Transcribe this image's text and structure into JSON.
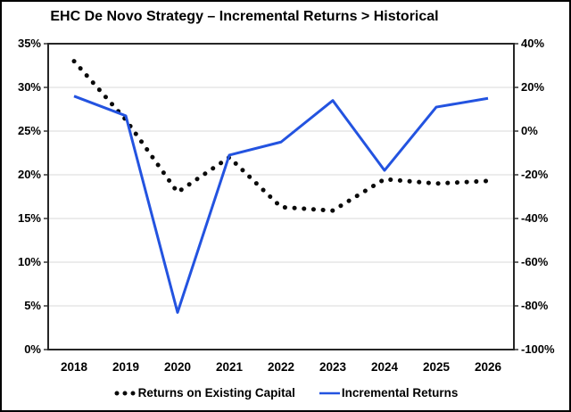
{
  "title": "EHC De Novo Strategy – Incremental Returns > Historical",
  "chart_data": {
    "type": "line",
    "title": "EHC De Novo Strategy – Incremental Returns > Historical",
    "categories": [
      "2018",
      "2019",
      "2020",
      "2021",
      "2022",
      "2023",
      "2024",
      "2025",
      "2026"
    ],
    "series": [
      {
        "name": "Returns on Existing Capital",
        "axis": "left",
        "style": "dotted",
        "color": "#0a0a0a",
        "values": [
          33,
          26.3,
          18,
          22,
          16.3,
          15.9,
          19.5,
          19,
          19.3
        ]
      },
      {
        "name": "Incremental Returns",
        "axis": "right",
        "style": "solid",
        "color": "#2353e0",
        "values": [
          16,
          7,
          -83,
          -11,
          -5,
          14,
          -18,
          11,
          15
        ]
      }
    ],
    "left_axis": {
      "min": 0,
      "max": 35,
      "step": 5,
      "labels": [
        "35%",
        "30%",
        "25%",
        "20%",
        "15%",
        "10%",
        "5%",
        "0%"
      ]
    },
    "right_axis": {
      "min": -100,
      "max": 40,
      "step": 20,
      "labels": [
        "40%",
        "20%",
        "0%",
        "-20%",
        "-40%",
        "-60%",
        "-80%",
        "-100%"
      ]
    },
    "grid": true,
    "legend_position": "bottom"
  },
  "colors": {
    "background": "#ffffff",
    "frame_border": "#000000",
    "plot_border": "#262626",
    "gridline": "#d9d9d9",
    "dotted_series": "#0a0a0a",
    "line_series": "#2353e0"
  }
}
